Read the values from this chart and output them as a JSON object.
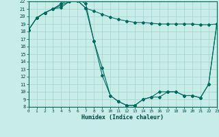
{
  "xlabel": "Humidex (Indice chaleur)",
  "bg_color": "#c8ece8",
  "grid_color": "#a8d8d0",
  "line_color": "#006b60",
  "xlim": [
    0,
    23
  ],
  "ylim": [
    8,
    22
  ],
  "xtick_vals": [
    0,
    1,
    2,
    3,
    4,
    5,
    6,
    7,
    8,
    9,
    10,
    11,
    12,
    13,
    14,
    15,
    16,
    17,
    18,
    19,
    20,
    21,
    22,
    23
  ],
  "ytick_vals": [
    8,
    9,
    10,
    11,
    12,
    13,
    14,
    15,
    16,
    17,
    18,
    19,
    20,
    21,
    22
  ],
  "line1_x": [
    0,
    1,
    2,
    3,
    4,
    5,
    6,
    7,
    8,
    9,
    10,
    11,
    12,
    13,
    14,
    15,
    16,
    17,
    18,
    19,
    20,
    21,
    22,
    23
  ],
  "line1_y": [
    18.2,
    19.8,
    20.5,
    21.0,
    21.5,
    22.0,
    22.1,
    21.1,
    16.7,
    12.2,
    9.5,
    8.7,
    8.2,
    8.2,
    9.0,
    9.3,
    10.0,
    10.0,
    10.0,
    9.5,
    9.5,
    9.2,
    11.0,
    19.0
  ],
  "line2_x": [
    0,
    1,
    2,
    3,
    4,
    5,
    6,
    7,
    8,
    9,
    10,
    11,
    12,
    13,
    14,
    15,
    16,
    17,
    18,
    19,
    20,
    21,
    22,
    23
  ],
  "line2_y": [
    18.2,
    19.8,
    20.5,
    21.0,
    21.2,
    22.0,
    22.1,
    21.1,
    20.7,
    20.3,
    19.9,
    19.6,
    19.4,
    19.2,
    19.2,
    19.1,
    19.0,
    19.0,
    19.0,
    19.0,
    19.0,
    18.9,
    18.9,
    19.0
  ],
  "line3_x": [
    0,
    1,
    2,
    3,
    4,
    5,
    6,
    7,
    8,
    9,
    10,
    11,
    12,
    13,
    14,
    15,
    16,
    17,
    18,
    19,
    20,
    21,
    22,
    23
  ],
  "line3_y": [
    18.2,
    19.8,
    20.5,
    21.0,
    21.7,
    22.2,
    22.3,
    21.7,
    16.7,
    13.2,
    9.5,
    8.7,
    8.2,
    8.2,
    9.0,
    9.3,
    9.3,
    10.0,
    10.0,
    9.5,
    9.5,
    9.2,
    11.0,
    19.0
  ]
}
